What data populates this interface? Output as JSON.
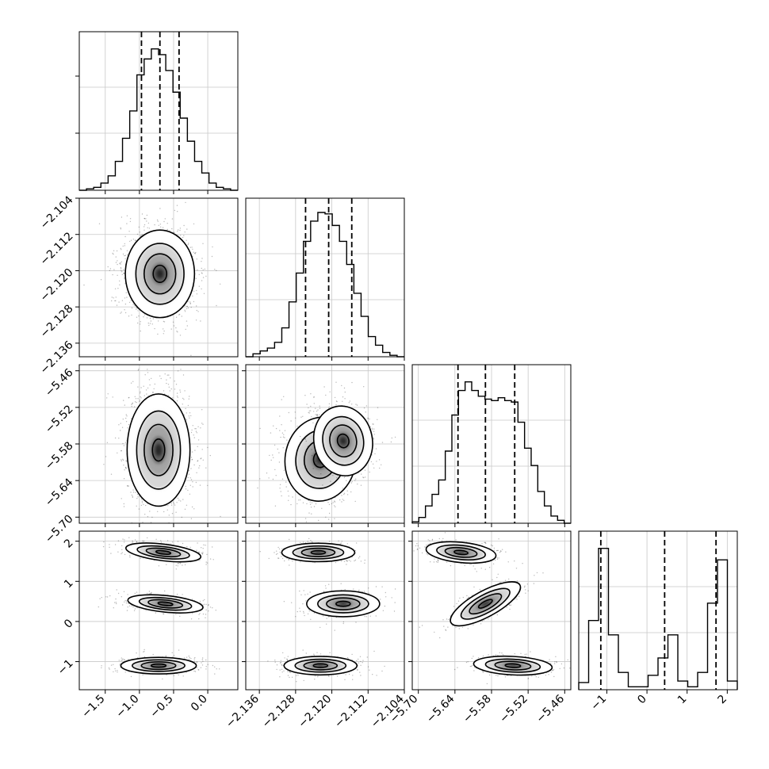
{
  "chart_data": {
    "type": "corner",
    "parameters": [
      {
        "ticks": [
          -1.5,
          -1.0,
          -0.5,
          0.0
        ],
        "tick_labels": [
          "−1.5",
          "−1.0",
          "−0.5",
          "0.0"
        ],
        "range": [
          -1.88,
          0.44
        ],
        "quantiles": [
          -0.97,
          -0.7,
          -0.42
        ],
        "hist": [
          0,
          0.01,
          0.02,
          0.05,
          0.1,
          0.2,
          0.36,
          0.55,
          0.8,
          0.91,
          0.98,
          0.94,
          0.83,
          0.68,
          0.5,
          0.34,
          0.2,
          0.12,
          0.05,
          0.02,
          0.01,
          0
        ]
      },
      {
        "ticks": [
          -2.136,
          -2.128,
          -2.12,
          -2.112,
          -2.104
        ],
        "tick_labels": [
          "−2.136",
          "−2.128",
          "−2.120",
          "−2.112",
          "−2.104"
        ],
        "range": [
          -2.139,
          -2.104
        ],
        "quantiles": [
          -2.1258,
          -2.1207,
          -2.1156
        ],
        "hist": [
          0,
          0.02,
          0.04,
          0.06,
          0.1,
          0.2,
          0.38,
          0.58,
          0.8,
          0.94,
          1.0,
          0.99,
          0.91,
          0.8,
          0.64,
          0.44,
          0.28,
          0.14,
          0.08,
          0.03,
          0.01,
          0
        ]
      },
      {
        "ticks": [
          -5.7,
          -5.64,
          -5.58,
          -5.52,
          -5.46
        ],
        "tick_labels": [
          "−5.70",
          "−5.64",
          "−5.58",
          "−5.52",
          "−5.46"
        ],
        "range": [
          -5.71,
          -5.45
        ],
        "quantiles": [
          -5.635,
          -5.59,
          -5.542
        ],
        "hist": [
          0.01,
          0.04,
          0.12,
          0.2,
          0.3,
          0.5,
          0.75,
          0.92,
          0.98,
          0.92,
          0.88,
          0.86,
          0.85,
          0.87,
          0.85,
          0.84,
          0.7,
          0.52,
          0.4,
          0.22,
          0.12,
          0.05,
          0.02,
          0
        ]
      },
      {
        "ticks": [
          -1,
          0,
          1,
          2
        ],
        "tick_labels": [
          "−1",
          "0",
          "1",
          "2"
        ],
        "range": [
          -1.7,
          2.25
        ],
        "quantiles": [
          -1.15,
          0.44,
          1.72
        ],
        "hist": [
          0.05,
          0.48,
          0.98,
          0.38,
          0.12,
          0.02,
          0.02,
          0.1,
          0.22,
          0.38,
          0.06,
          0.02,
          0.12,
          0.6,
          0.9,
          0.06
        ]
      }
    ],
    "clusters_param4": [
      1.72,
      0.44,
      -1.1
    ],
    "grid": true
  }
}
